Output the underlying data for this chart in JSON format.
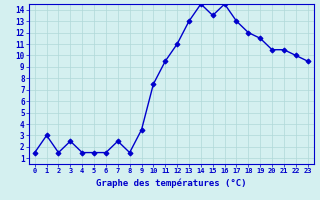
{
  "x": [
    0,
    1,
    2,
    3,
    4,
    5,
    6,
    7,
    8,
    9,
    10,
    11,
    12,
    13,
    14,
    15,
    16,
    17,
    18,
    19,
    20,
    21,
    22,
    23
  ],
  "y": [
    1.5,
    3.0,
    1.5,
    2.5,
    1.5,
    1.5,
    1.5,
    2.5,
    1.5,
    3.5,
    7.5,
    9.5,
    11.0,
    13.0,
    14.5,
    13.5,
    14.5,
    13.0,
    12.0,
    11.5,
    10.5,
    10.5,
    10.0,
    9.5
  ],
  "line_color": "#0000cc",
  "marker": "D",
  "marker_color": "#0000cc",
  "bg_color": "#d4f0f0",
  "grid_color": "#b0d8d8",
  "xlabel": "Graphe des températures (°C)",
  "xlabel_color": "#0000cc",
  "tick_color": "#0000cc",
  "xlim": [
    -0.5,
    23.5
  ],
  "ylim": [
    0.5,
    14.5
  ],
  "yticks": [
    1,
    2,
    3,
    4,
    5,
    6,
    7,
    8,
    9,
    10,
    11,
    12,
    13,
    14
  ],
  "xticks": [
    0,
    1,
    2,
    3,
    4,
    5,
    6,
    7,
    8,
    9,
    10,
    11,
    12,
    13,
    14,
    15,
    16,
    17,
    18,
    19,
    20,
    21,
    22,
    23
  ],
  "border_color": "#0000cc",
  "linewidth": 1.0,
  "markersize": 2.5
}
